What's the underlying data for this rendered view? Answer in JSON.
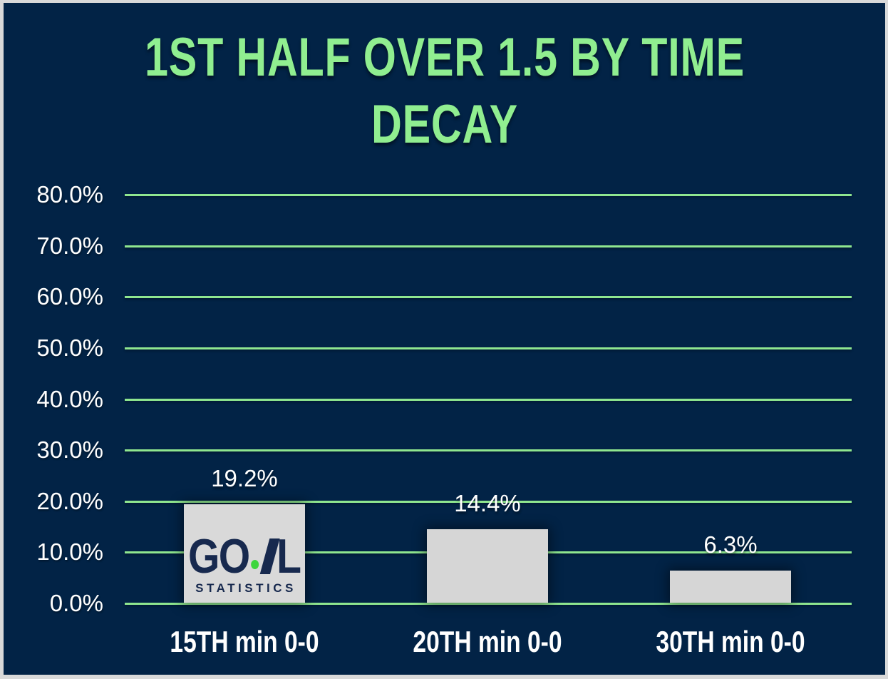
{
  "chart_data": {
    "type": "bar",
    "title": "1ST HALF OVER 1.5 BY TIME DECAY",
    "categories": [
      "15TH min 0-0",
      "20TH min 0-0",
      "30TH min 0-0"
    ],
    "values": [
      19.2,
      14.4,
      6.3
    ],
    "value_labels": [
      "19.2%",
      "14.4%",
      "6.3%"
    ],
    "xlabel": "",
    "ylabel": "",
    "ylim": [
      0,
      80
    ],
    "ytick_step": 10,
    "ytick_labels": [
      "80.0%",
      "70.0%",
      "60.0%",
      "50.0%",
      "40.0%",
      "30.0%",
      "20.0%",
      "10.0%",
      "0.0%"
    ],
    "grid": true,
    "legend": "none"
  },
  "logo": {
    "word_left": "GO",
    "word_right": "L",
    "subtitle": "STATISTICS"
  },
  "colors": {
    "background": "#022346",
    "frame_border": "#d9d9d9",
    "title": "#90ee90",
    "grid": "#8fe68f",
    "bar": "#d6d6d6",
    "text": "#ffffff",
    "logo_bg": "#d9d9d9",
    "logo_navy": "#17294e",
    "logo_green": "#3ed63e"
  }
}
